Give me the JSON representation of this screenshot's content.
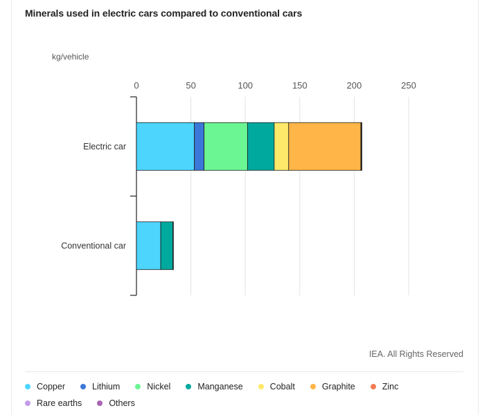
{
  "chart_data": {
    "type": "bar",
    "orientation": "horizontal",
    "stacked": true,
    "title": "Minerals used in electric cars compared to conventional cars",
    "unit_label": "kg/vehicle",
    "xlim": [
      0,
      250
    ],
    "ticks": [
      0,
      50,
      100,
      150,
      200,
      250
    ],
    "grid": true,
    "legend_position": "bottom",
    "categories": [
      "Electric car",
      "Conventional car"
    ],
    "series": [
      {
        "name": "Copper",
        "color": "#4dd5fe",
        "values": [
          53.2,
          22.3
        ]
      },
      {
        "name": "Lithium",
        "color": "#3c78d8",
        "values": [
          8.9,
          0
        ]
      },
      {
        "name": "Nickel",
        "color": "#6cf593",
        "values": [
          39.9,
          0
        ]
      },
      {
        "name": "Manganese",
        "color": "#00a99d",
        "values": [
          24.5,
          11.2
        ]
      },
      {
        "name": "Cobalt",
        "color": "#ffe96b",
        "values": [
          13.3,
          0
        ]
      },
      {
        "name": "Graphite",
        "color": "#ffb547",
        "values": [
          66.3,
          0
        ]
      },
      {
        "name": "Zinc",
        "color": "#f27c52",
        "values": [
          0.1,
          0.1
        ]
      },
      {
        "name": "Rare earths",
        "color": "#c39bea",
        "values": [
          0.5,
          0
        ]
      },
      {
        "name": "Others",
        "color": "#a865b5",
        "values": [
          0.3,
          0.3
        ]
      }
    ]
  },
  "source": "IEA. All Rights Reserved"
}
